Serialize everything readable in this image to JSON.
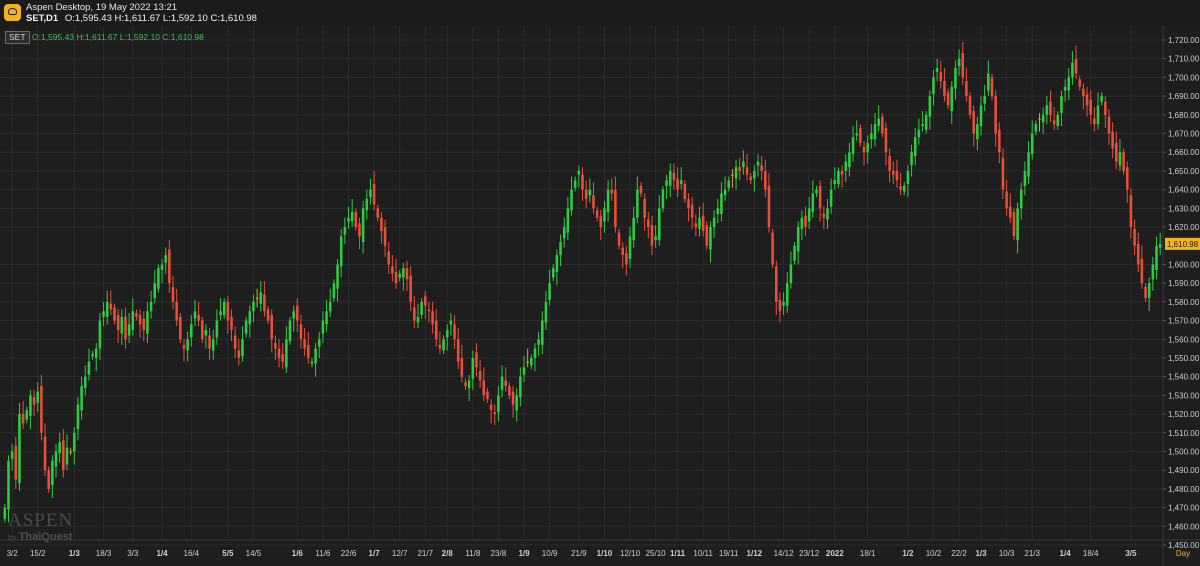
{
  "window": {
    "title": "Aspen Desktop, 19 May 2022 13:21",
    "symbol": "SET,D1",
    "ohlc": "O:1,595.43 H:1,611.67 L:1,592.10 C:1,610.98",
    "logo_icon": "aspen-logo-icon"
  },
  "legend": {
    "badge": "SET",
    "ohlc": "O:1,595.43 H:1,611.67 L:1,592.10 C:1,610.98"
  },
  "watermark": {
    "brand": "ASPEN",
    "byline_prefix": "by",
    "byline_company": "ThaiQuest"
  },
  "colors": {
    "background": "#1e1e1e",
    "grid": "#2b2b2b",
    "up": "#2ecc40",
    "down": "#e8503a",
    "neutral": "#d9a441",
    "axis_text": "#cfcfcf",
    "price_tag": "#f3b321"
  },
  "chart_data": {
    "type": "candlestick",
    "timeframe_label": "Day",
    "current_price_label": "1,610.98",
    "ylim": [
      1450,
      1725
    ],
    "y_ticks": [
      {
        "v": 1720,
        "label": "1,720.00"
      },
      {
        "v": 1710,
        "label": "1,710.00"
      },
      {
        "v": 1700,
        "label": "1,700.00"
      },
      {
        "v": 1690,
        "label": "1,690.00"
      },
      {
        "v": 1680,
        "label": "1,680.00"
      },
      {
        "v": 1670,
        "label": "1,670.00"
      },
      {
        "v": 1660,
        "label": "1,660.00"
      },
      {
        "v": 1650,
        "label": "1,650.00"
      },
      {
        "v": 1640,
        "label": "1,640.00"
      },
      {
        "v": 1630,
        "label": "1,630.00"
      },
      {
        "v": 1620,
        "label": "1,620.00"
      },
      {
        "v": 1600,
        "label": "1,600.00"
      },
      {
        "v": 1590,
        "label": "1,590.00"
      },
      {
        "v": 1580,
        "label": "1,580.00"
      },
      {
        "v": 1570,
        "label": "1,570.00"
      },
      {
        "v": 1560,
        "label": "1,560.00"
      },
      {
        "v": 1550,
        "label": "1,550.00"
      },
      {
        "v": 1540,
        "label": "1,540.00"
      },
      {
        "v": 1530,
        "label": "1,530.00"
      },
      {
        "v": 1520,
        "label": "1,520.00"
      },
      {
        "v": 1510,
        "label": "1,510.00"
      },
      {
        "v": 1500,
        "label": "1,500.00"
      },
      {
        "v": 1490,
        "label": "1,490.00"
      },
      {
        "v": 1480,
        "label": "1,480.00"
      },
      {
        "v": 1470,
        "label": "1,470.00"
      },
      {
        "v": 1460,
        "label": "1,460.00"
      },
      {
        "v": 1450,
        "label": "1,450.00"
      }
    ],
    "x_labels": [
      "3/2",
      "15/2",
      "1/3",
      "18/3",
      "3/3",
      "1/4",
      "16/4",
      "5/5",
      "14/5",
      "1/6",
      "11/6",
      "22/6",
      "1/7",
      "12/7",
      "21/7",
      "2/8",
      "11/8",
      "23/8",
      "1/9",
      "10/9",
      "21/9",
      "1/10",
      "12/10",
      "25/10",
      "1/11",
      "10/11",
      "19/11",
      "1/12",
      "14/12",
      "23/12",
      "2022",
      "18/1",
      "1/2",
      "10/2",
      "22/2",
      "1/3",
      "10/3",
      "21/3",
      "1/4",
      "18/4",
      "3/5"
    ],
    "x_label_index": [
      2,
      9,
      19,
      27,
      35,
      43,
      51,
      61,
      68,
      80,
      87,
      94,
      101,
      108,
      115,
      121,
      128,
      135,
      142,
      149,
      157,
      164,
      171,
      178,
      184,
      191,
      198,
      205,
      213,
      220,
      227,
      236,
      247,
      254,
      261,
      267,
      274,
      281,
      290,
      297,
      308
    ],
    "bold_x_labels": [
      "1/3",
      "1/4",
      "5/5",
      "1/6",
      "1/7",
      "2/8",
      "1/9",
      "1/10",
      "1/11",
      "1/12",
      "2022",
      "1/2",
      "1/3",
      "1/4",
      "3/5"
    ],
    "closes": [
      1470,
      1495,
      1500,
      1485,
      1520,
      1515,
      1522,
      1530,
      1525,
      1532,
      1510,
      1490,
      1480,
      1495,
      1500,
      1505,
      1490,
      1502,
      1500,
      1510,
      1525,
      1535,
      1540,
      1548,
      1552,
      1555,
      1570,
      1575,
      1580,
      1576,
      1570,
      1565,
      1572,
      1560,
      1568,
      1575,
      1572,
      1568,
      1565,
      1575,
      1580,
      1590,
      1598,
      1600,
      1605,
      1590,
      1580,
      1570,
      1560,
      1555,
      1560,
      1568,
      1575,
      1570,
      1560,
      1565,
      1555,
      1560,
      1570,
      1575,
      1580,
      1570,
      1565,
      1555,
      1550,
      1560,
      1570,
      1575,
      1580,
      1582,
      1585,
      1575,
      1570,
      1560,
      1555,
      1550,
      1548,
      1560,
      1570,
      1575,
      1570,
      1560,
      1555,
      1550,
      1548,
      1555,
      1560,
      1570,
      1575,
      1580,
      1590,
      1600,
      1615,
      1620,
      1625,
      1628,
      1620,
      1615,
      1630,
      1635,
      1640,
      1632,
      1625,
      1618,
      1610,
      1600,
      1595,
      1590,
      1595,
      1598,
      1592,
      1580,
      1570,
      1572,
      1580,
      1578,
      1575,
      1568,
      1560,
      1555,
      1560,
      1565,
      1570,
      1560,
      1548,
      1540,
      1535,
      1538,
      1550,
      1545,
      1538,
      1530,
      1528,
      1522,
      1520,
      1530,
      1540,
      1535,
      1530,
      1525,
      1530,
      1540,
      1545,
      1548,
      1550,
      1555,
      1560,
      1570,
      1580,
      1590,
      1598,
      1605,
      1612,
      1620,
      1630,
      1640,
      1645,
      1650,
      1640,
      1635,
      1640,
      1630,
      1625,
      1620,
      1630,
      1640,
      1638,
      1620,
      1610,
      1605,
      1600,
      1615,
      1625,
      1640,
      1638,
      1625,
      1620,
      1610,
      1615,
      1630,
      1640,
      1645,
      1650,
      1645,
      1640,
      1645,
      1635,
      1630,
      1625,
      1620,
      1625,
      1618,
      1610,
      1620,
      1625,
      1630,
      1638,
      1640,
      1645,
      1648,
      1652,
      1650,
      1655,
      1648,
      1645,
      1650,
      1655,
      1650,
      1640,
      1620,
      1600,
      1580,
      1575,
      1580,
      1590,
      1600,
      1610,
      1620,
      1625,
      1620,
      1630,
      1638,
      1640,
      1630,
      1625,
      1630,
      1640,
      1645,
      1650,
      1648,
      1655,
      1660,
      1668,
      1670,
      1665,
      1660,
      1665,
      1670,
      1675,
      1678,
      1670,
      1660,
      1650,
      1648,
      1645,
      1640,
      1642,
      1650,
      1660,
      1668,
      1672,
      1675,
      1680,
      1690,
      1700,
      1705,
      1698,
      1690,
      1685,
      1695,
      1705,
      1710,
      1700,
      1690,
      1680,
      1670,
      1675,
      1685,
      1690,
      1702,
      1690,
      1670,
      1660,
      1640,
      1630,
      1625,
      1615,
      1630,
      1640,
      1650,
      1660,
      1670,
      1675,
      1678,
      1680,
      1685,
      1680,
      1675,
      1680,
      1690,
      1695,
      1700,
      1708,
      1702,
      1695,
      1690,
      1685,
      1680,
      1675,
      1685,
      1690,
      1680,
      1670,
      1662,
      1655,
      1660,
      1650,
      1640,
      1620,
      1610,
      1600,
      1590,
      1582,
      1590,
      1600,
      1610,
      1611
    ]
  }
}
